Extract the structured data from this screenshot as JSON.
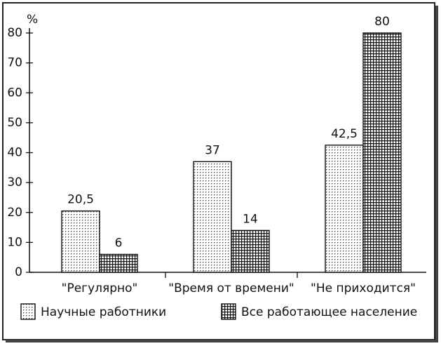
{
  "chart_data": {
    "type": "bar",
    "ylabel": "%",
    "categories": [
      "\"Регулярно\"",
      "\"Время от времени\"",
      "\"Не приходится\""
    ],
    "series": [
      {
        "name": "Научные работники",
        "color": "#000000",
        "pattern": "dots",
        "values": [
          20.5,
          37,
          42.5
        ],
        "value_labels": [
          "20,5",
          "37",
          "42,5"
        ]
      },
      {
        "name": "Все работающее население",
        "color": "#000000",
        "pattern": "grid",
        "values": [
          6,
          14,
          80
        ]
      }
    ],
    "ylim": [
      0,
      80
    ],
    "yticks": [
      0,
      10,
      20,
      30,
      40,
      50,
      60,
      70,
      80
    ],
    "grid": false
  }
}
